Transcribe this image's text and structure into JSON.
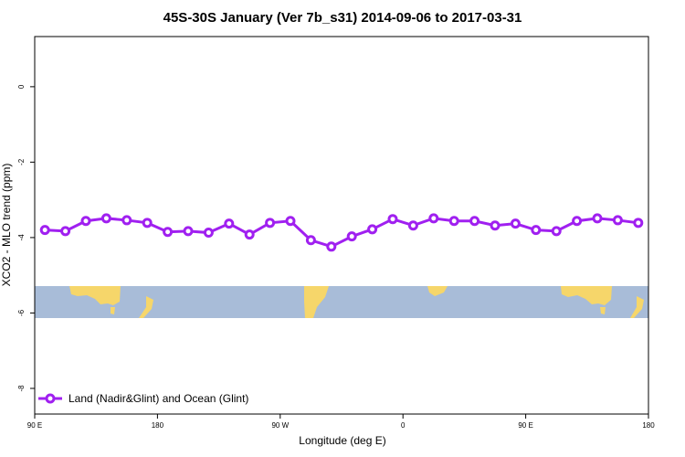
{
  "chart_data": {
    "type": "line",
    "title": "45S-30S January (Ver 7b_s31)   2014-09-06 to 2017-03-31",
    "x_label": "Longitude (deg E)",
    "y_label": "XCO2 - MLO trend (ppm)",
    "x": [
      97.5,
      112.5,
      127.5,
      142.5,
      157.5,
      172.5,
      187.5,
      202.5,
      217.5,
      232.5,
      247.5,
      262.5,
      277.5,
      292.5,
      307.5,
      322.5,
      337.5,
      352.5,
      367.5,
      382.5,
      397.5,
      412.5,
      427.5,
      442.5,
      457.5,
      472.5,
      487.5,
      502.5,
      517.5,
      532.5
    ],
    "series": [
      {
        "name": "Land (Nadir&Glint) and Ocean (Glint)",
        "color": "#a020f0",
        "values": [
          -3.8,
          -3.83,
          -3.56,
          -3.49,
          -3.54,
          -3.61,
          -3.85,
          -3.83,
          -3.87,
          -3.63,
          -3.92,
          -3.61,
          -3.56,
          -4.07,
          -4.24,
          -3.97,
          -3.78,
          -3.51,
          -3.68,
          -3.49,
          -3.56,
          -3.56,
          -3.68,
          -3.63,
          -3.8,
          -3.83,
          -3.56,
          -3.49,
          -3.54,
          -3.61
        ]
      }
    ],
    "xlim": [
      90,
      540
    ],
    "xticks": [
      {
        "value": 90,
        "label": "90 E"
      },
      180,
      {
        "value": 270,
        "label": "90 W"
      },
      {
        "value": 360,
        "label": "0"
      },
      {
        "value": 450,
        "label": "90 E"
      },
      {
        "value": 540,
        "label": "180"
      }
    ],
    "ylim": [
      -8.68,
      1.33
    ],
    "yticks": [
      0,
      -2,
      -4,
      -6,
      -8
    ],
    "legend": "bottom-left"
  }
}
